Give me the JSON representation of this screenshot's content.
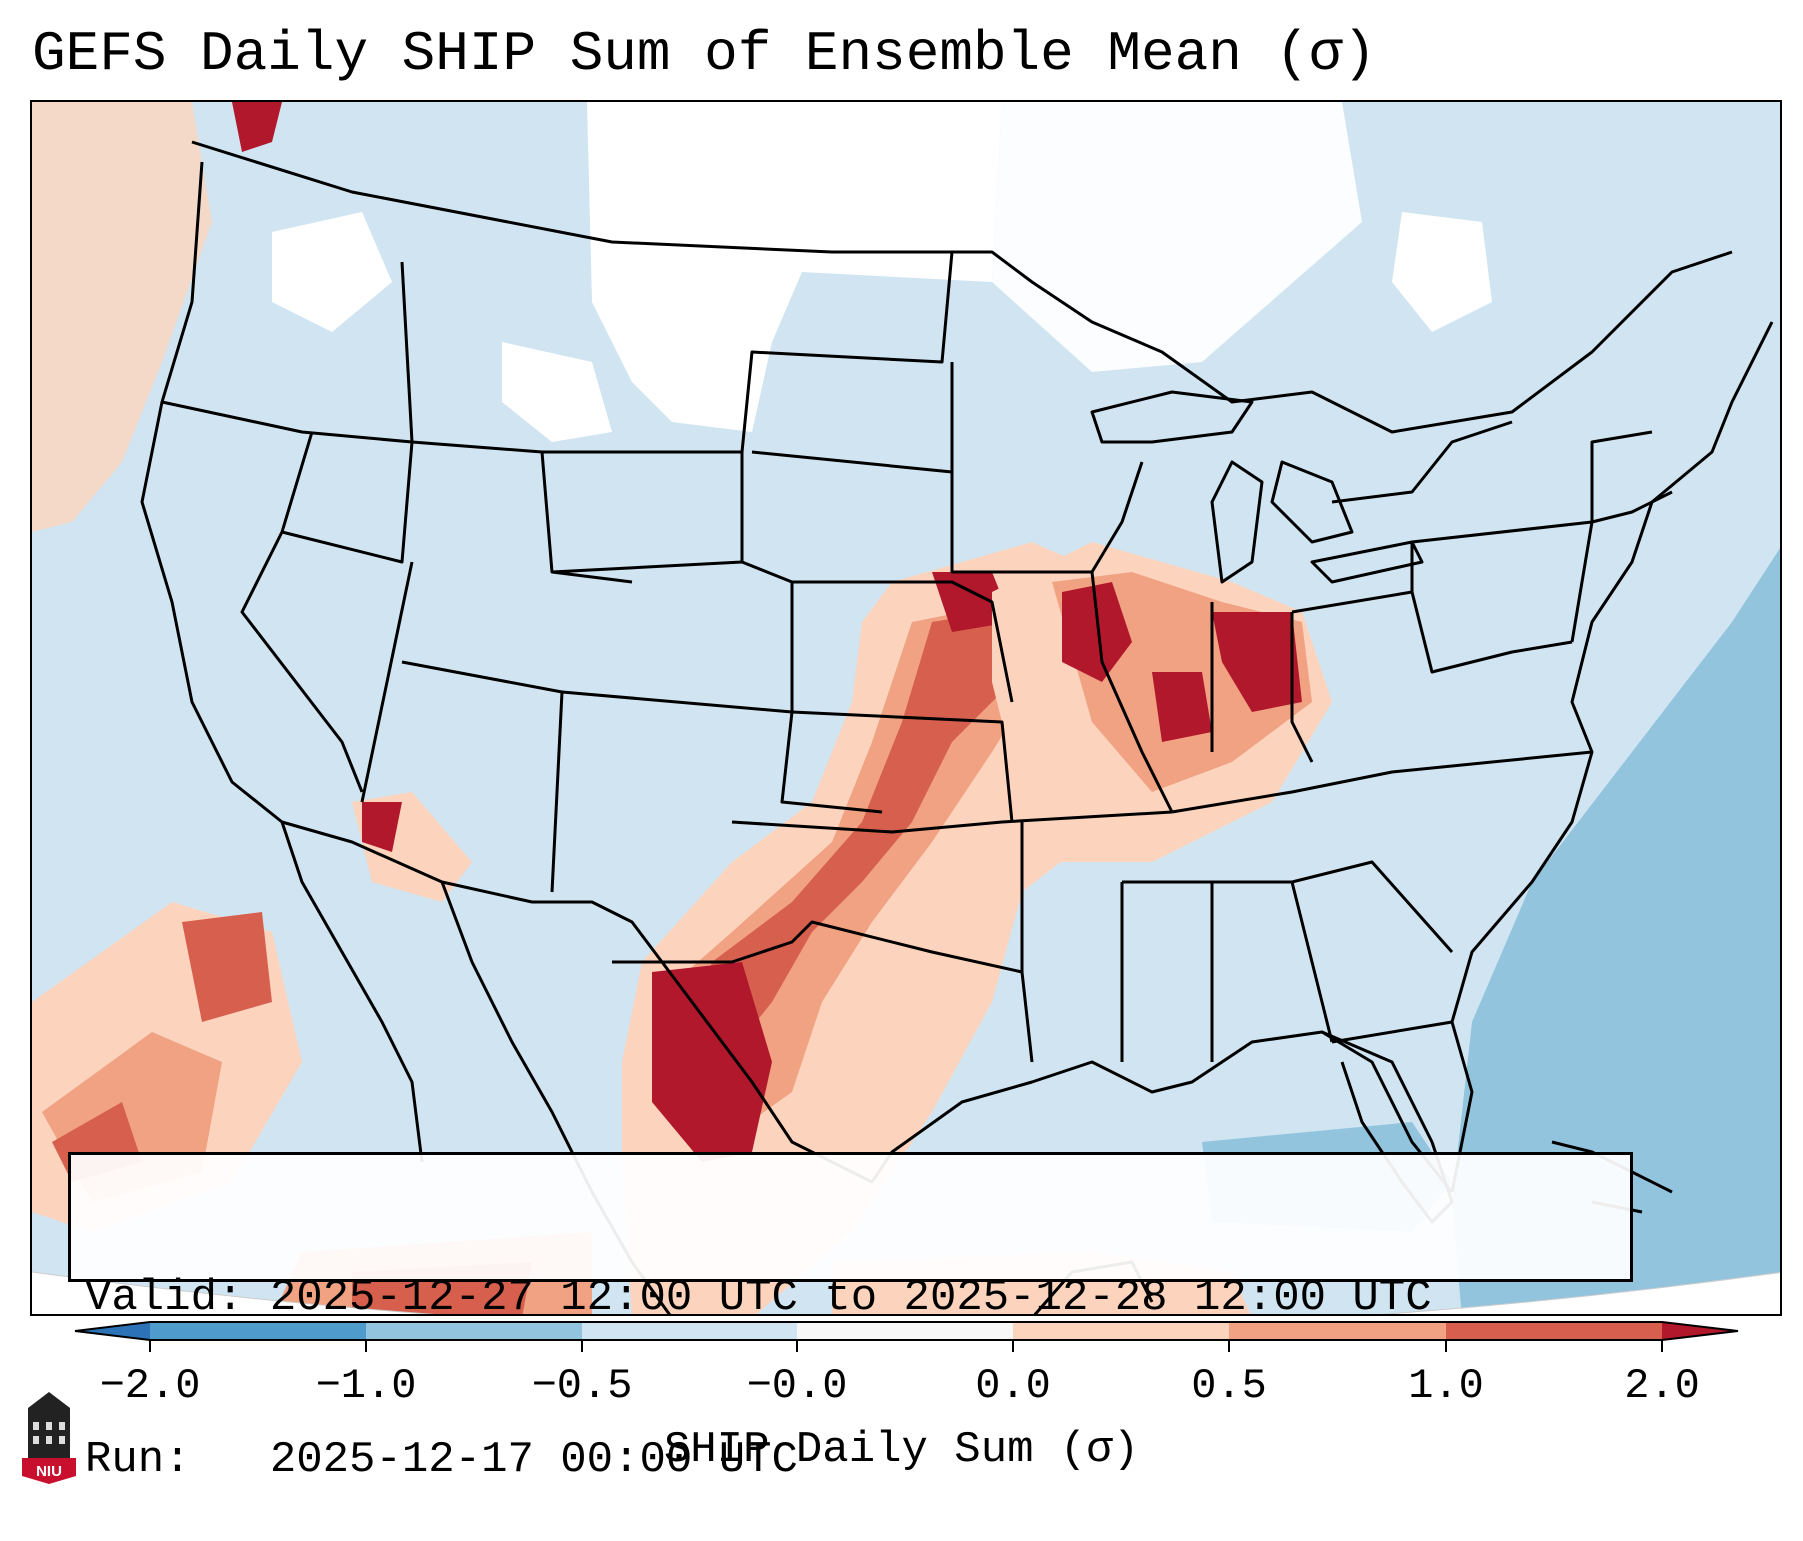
{
  "title": "GEFS Daily SHIP Sum of Ensemble Mean (σ)",
  "map": {
    "region": "Continental United States",
    "variable": "SHIP daily sum anomaly",
    "valid": "Valid: 2025-12-27 12:00 UTC to 2025-12-28 12:00 UTC",
    "run": "Run:   2025-12-17 00:00 UTC"
  },
  "colorbar": {
    "label": "SHIP Daily Sum (σ)",
    "ticks": [
      "−2.0",
      "−1.0",
      "−0.5",
      "−0.0",
      "0.0",
      "0.5",
      "1.0",
      "2.0"
    ],
    "colors": [
      "#2b73b6",
      "#4f9bcb",
      "#92c4de",
      "#d0e5f1",
      "#f7f7f7",
      "#fcd4be",
      "#f0a283",
      "#d6604d",
      "#b2182b"
    ]
  },
  "logo": {
    "text": "NIU"
  }
}
